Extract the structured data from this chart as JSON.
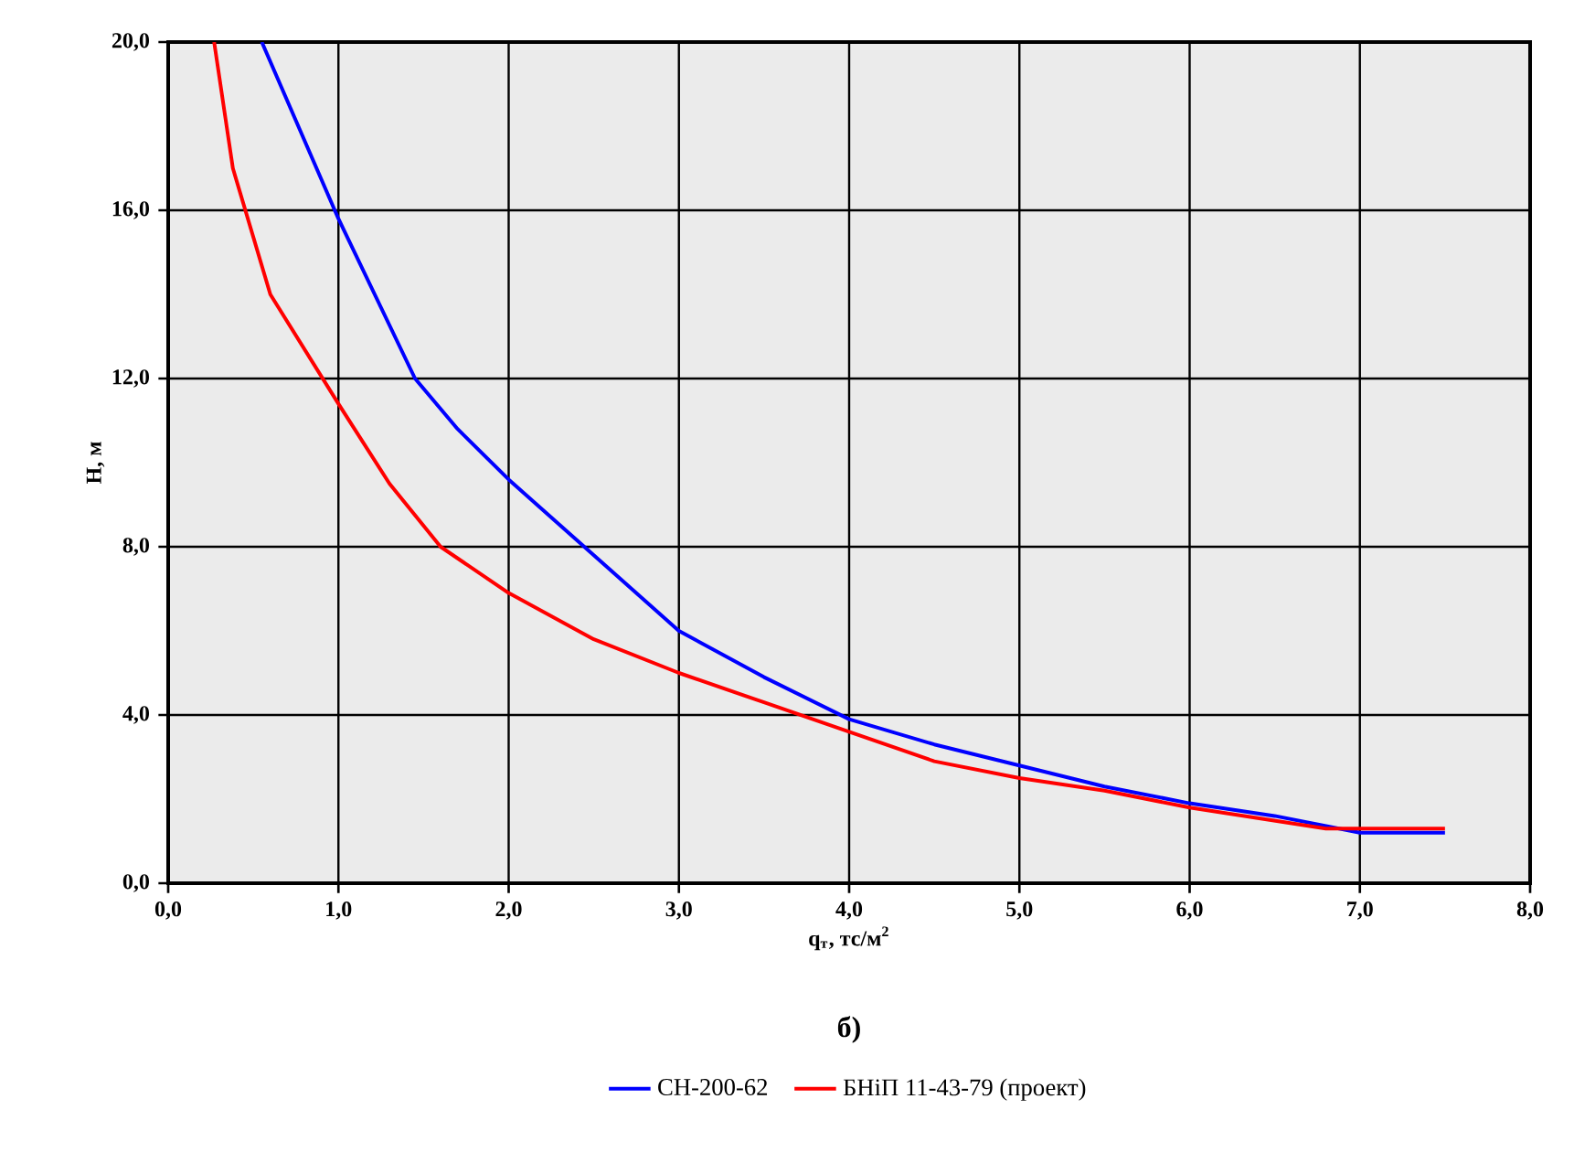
{
  "chart_data": {
    "type": "line",
    "xlabel": "q$_{т}$, тс/м$^{2}$",
    "ylabel": "H, м",
    "annotations": [
      "б)"
    ],
    "xlim": [
      0,
      8
    ],
    "ylim": [
      0,
      20
    ],
    "xticks": [
      {
        "value": 0,
        "label": "0,0"
      },
      {
        "value": 1,
        "label": "1,0"
      },
      {
        "value": 2,
        "label": "2,0"
      },
      {
        "value": 3,
        "label": "3,0"
      },
      {
        "value": 4,
        "label": "4,0"
      },
      {
        "value": 5,
        "label": "5,0"
      },
      {
        "value": 6,
        "label": "6,0"
      },
      {
        "value": 7,
        "label": "7,0"
      },
      {
        "value": 8,
        "label": "8,0"
      }
    ],
    "yticks": [
      {
        "value": 0,
        "label": "0,0"
      },
      {
        "value": 4,
        "label": "4,0"
      },
      {
        "value": 8,
        "label": "8,0"
      },
      {
        "value": 12,
        "label": "12,0"
      },
      {
        "value": 16,
        "label": "16,0"
      },
      {
        "value": 20,
        "label": "20,0"
      }
    ],
    "grid": true,
    "legend": "bottom",
    "marker": "none",
    "line_style": "solid",
    "series": [
      {
        "name": "СН-200-62",
        "color": "#0000ff",
        "x": [
          0.55,
          1.0,
          1.45,
          1.7,
          2.0,
          2.5,
          3.0,
          3.5,
          4.0,
          4.5,
          5.0,
          5.5,
          6.0,
          6.5,
          7.0,
          7.5
        ],
        "values": [
          20,
          15.8,
          12.0,
          10.8,
          9.6,
          7.8,
          6.0,
          4.9,
          3.9,
          3.3,
          2.8,
          2.3,
          1.9,
          1.6,
          1.2,
          1.2
        ]
      },
      {
        "name": "БНіП 11-43-79 (проект)",
        "color": "#ff0000",
        "x": [
          0.27,
          0.38,
          0.6,
          1.0,
          1.3,
          1.6,
          2.0,
          2.5,
          3.0,
          3.5,
          4.0,
          4.5,
          5.0,
          5.5,
          6.0,
          6.8,
          7.5
        ],
        "values": [
          20,
          17.0,
          14.0,
          11.4,
          9.5,
          8.0,
          6.9,
          5.8,
          5.0,
          4.3,
          3.6,
          2.9,
          2.5,
          2.2,
          1.8,
          1.3,
          1.3
        ]
      }
    ]
  }
}
